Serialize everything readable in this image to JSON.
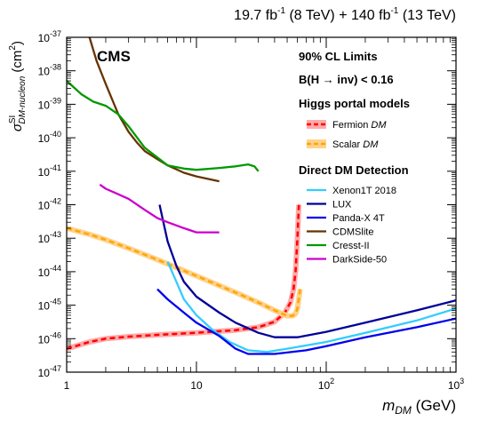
{
  "chart_data": {
    "type": "line",
    "lumi_label": {
      "l1": "19.7 fb",
      "s1": "-1",
      "m1": " (8 TeV) + 140 fb",
      "s2": "-1",
      "m2": " (13 TeV)"
    },
    "experiment": "CMS",
    "limits_label": "90% CL Limits",
    "branching_label": "B(H → inv) < 0.16",
    "higgs_heading": "Higgs portal models",
    "direct_heading": "Direct DM Detection",
    "xlabel": {
      "main": "m",
      "sub": "DM",
      "unit": " (GeV)"
    },
    "ylabel": {
      "main": "σ",
      "sub": "DM-nucleon",
      "sup": "SI",
      "unit": " (cm",
      "unitsup": "2",
      "close": ")"
    },
    "x_scale": "log",
    "y_scale": "log",
    "xlim": [
      1,
      1000
    ],
    "ylim": [
      1e-47,
      1e-37
    ],
    "x_ticks": [
      {
        "value": 1,
        "base": "1",
        "exp": ""
      },
      {
        "value": 10,
        "base": "10",
        "exp": ""
      },
      {
        "value": 100,
        "base": "10",
        "exp": "2"
      },
      {
        "value": 1000,
        "base": "10",
        "exp": "3"
      }
    ],
    "y_ticks": [
      {
        "value": 1e-47,
        "base": "10",
        "exp": "-47"
      },
      {
        "value": 1e-46,
        "base": "10",
        "exp": "-46"
      },
      {
        "value": 1e-45,
        "base": "10",
        "exp": "-45"
      },
      {
        "value": 1e-44,
        "base": "10",
        "exp": "-44"
      },
      {
        "value": 1e-43,
        "base": "10",
        "exp": "-43"
      },
      {
        "value": 1e-42,
        "base": "10",
        "exp": "-42"
      },
      {
        "value": 1e-41,
        "base": "10",
        "exp": "-41"
      },
      {
        "value": 1e-40,
        "base": "10",
        "exp": "-40"
      },
      {
        "value": 1e-39,
        "base": "10",
        "exp": "-39"
      },
      {
        "value": 1e-38,
        "base": "10",
        "exp": "-38"
      },
      {
        "value": 1e-37,
        "base": "10",
        "exp": "-37"
      }
    ],
    "series": [
      {
        "name": "Fermion",
        "name_italic": "DM",
        "kind": "higgs",
        "color": "#ff0000",
        "band_color": "#ffaaaa",
        "points": [
          [
            1,
            5e-47
          ],
          [
            1.5,
            8e-47
          ],
          [
            2,
            1e-46
          ],
          [
            3,
            1.15e-46
          ],
          [
            5,
            1.3e-46
          ],
          [
            10,
            1.5e-46
          ],
          [
            20,
            1.8e-46
          ],
          [
            30,
            2.2e-46
          ],
          [
            40,
            3.2e-46
          ],
          [
            48,
            6e-46
          ],
          [
            53,
            1.2e-45
          ],
          [
            56,
            3e-45
          ],
          [
            58,
            1e-44
          ],
          [
            60,
            1e-43
          ],
          [
            61.5,
            1e-42
          ]
        ]
      },
      {
        "name": "Scalar",
        "name_italic": "DM",
        "kind": "higgs",
        "color": "#ffa500",
        "band_color": "#ffd28c",
        "points": [
          [
            1,
            2e-43
          ],
          [
            1.5,
            1.3e-43
          ],
          [
            2,
            9e-44
          ],
          [
            3,
            5e-44
          ],
          [
            5,
            2.3e-44
          ],
          [
            10,
            7.5e-45
          ],
          [
            20,
            2.4e-45
          ],
          [
            30,
            1.2e-45
          ],
          [
            40,
            7e-46
          ],
          [
            50,
            4.8e-46
          ],
          [
            55,
            4.8e-46
          ],
          [
            58,
            5.5e-46
          ],
          [
            60,
            8e-46
          ],
          [
            62,
            2e-45
          ],
          [
            63,
            3e-45
          ]
        ]
      },
      {
        "name": "Xenon1T 2018",
        "kind": "direct",
        "color": "#33ccff",
        "points": [
          [
            6,
            2e-44
          ],
          [
            7,
            5e-45
          ],
          [
            8,
            1.5e-45
          ],
          [
            10,
            5e-46
          ],
          [
            13,
            2e-46
          ],
          [
            18,
            8e-47
          ],
          [
            25,
            4.5e-47
          ],
          [
            35,
            4e-47
          ],
          [
            50,
            5e-47
          ],
          [
            100,
            8e-47
          ],
          [
            200,
            1.5e-46
          ],
          [
            500,
            3.5e-46
          ],
          [
            1000,
            8e-46
          ]
        ]
      },
      {
        "name": "LUX",
        "kind": "direct",
        "color": "#000099",
        "points": [
          [
            5.2,
            1e-42
          ],
          [
            6,
            8e-44
          ],
          [
            7,
            1.5e-44
          ],
          [
            8,
            5e-45
          ],
          [
            10,
            1.8e-45
          ],
          [
            15,
            6e-46
          ],
          [
            20,
            3e-46
          ],
          [
            30,
            1.5e-46
          ],
          [
            40,
            1.1e-46
          ],
          [
            60,
            1.1e-46
          ],
          [
            100,
            1.6e-46
          ],
          [
            200,
            3e-46
          ],
          [
            500,
            7e-46
          ],
          [
            1000,
            1.4e-45
          ]
        ]
      },
      {
        "name": "Panda-X 4T",
        "kind": "direct",
        "color": "#0000ee",
        "points": [
          [
            5,
            3e-45
          ],
          [
            6,
            1.5e-45
          ],
          [
            8,
            6e-46
          ],
          [
            10,
            3e-46
          ],
          [
            15,
            1.2e-46
          ],
          [
            20,
            5e-47
          ],
          [
            25,
            3.5e-47
          ],
          [
            40,
            3.5e-47
          ],
          [
            70,
            4.5e-47
          ],
          [
            100,
            6e-47
          ],
          [
            200,
            1.1e-46
          ],
          [
            500,
            2.2e-46
          ],
          [
            1000,
            4e-46
          ]
        ]
      },
      {
        "name": "CDMSlite",
        "kind": "direct",
        "color": "#663300",
        "points": [
          [
            1.5,
            1e-37
          ],
          [
            1.7,
            2e-38
          ],
          [
            2,
            4e-39
          ],
          [
            2.5,
            5e-40
          ],
          [
            3,
            1.5e-40
          ],
          [
            3.5,
            7e-41
          ],
          [
            4,
            4e-41
          ],
          [
            5,
            2.3e-41
          ],
          [
            6,
            1.5e-41
          ],
          [
            8,
            9e-42
          ],
          [
            10,
            7e-42
          ],
          [
            15,
            5e-42
          ]
        ]
      },
      {
        "name": "Cresst-II",
        "kind": "direct",
        "color": "#009900",
        "points": [
          [
            1,
            5e-39
          ],
          [
            1.3,
            2e-39
          ],
          [
            1.6,
            1.2e-39
          ],
          [
            2,
            9e-40
          ],
          [
            2.5,
            5e-40
          ],
          [
            3,
            2.2e-40
          ],
          [
            4,
            5e-41
          ],
          [
            6,
            1.5e-41
          ],
          [
            8,
            1.2e-41
          ],
          [
            10,
            1.1e-41
          ],
          [
            15,
            1.25e-41
          ],
          [
            20,
            1.4e-41
          ],
          [
            25,
            1.6e-41
          ],
          [
            28,
            1.4e-41
          ],
          [
            30,
            1e-41
          ]
        ]
      },
      {
        "name": "DarkSide-50",
        "kind": "direct",
        "color": "#cc00cc",
        "points": [
          [
            1.8,
            4e-42
          ],
          [
            2,
            3e-42
          ],
          [
            3,
            1.5e-42
          ],
          [
            4,
            7e-43
          ],
          [
            5,
            4e-43
          ],
          [
            6,
            3e-43
          ],
          [
            8,
            2e-43
          ],
          [
            10,
            1.5e-43
          ],
          [
            15,
            1.5e-43
          ]
        ]
      }
    ]
  }
}
